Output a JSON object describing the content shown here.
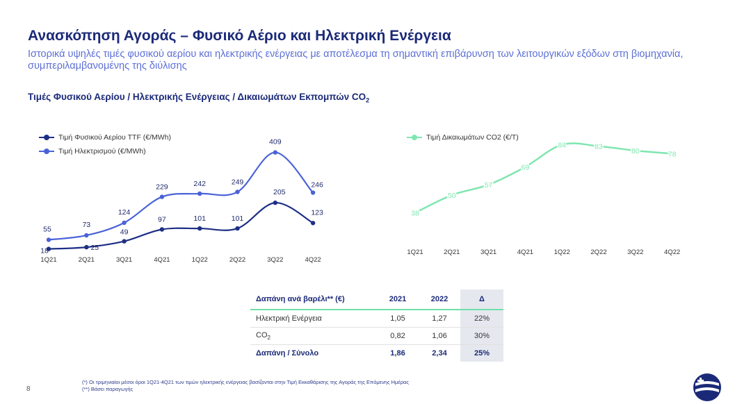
{
  "header": {
    "title": "Ανασκόπηση Αγοράς – Φυσικό Αέριο και Ηλεκτρική Ενέργεια",
    "subtitle": "Ιστορικά υψηλές τιμές φυσικού αερίου και ηλεκτρικής ενέργειας με αποτέλεσμα τη σημαντική επιβάρυνση των λειτουργικών εξόδων στη βιομηχανία, συμπεριλαμβανομένης της διύλισης",
    "chart_heading": "Τιμές Φυσικού Αερίου / Ηλεκτρικής Ενέργειας / Δικαιωμάτων Εκπομπών CO",
    "chart_heading_sub": "2"
  },
  "chart_data": [
    {
      "type": "line",
      "categories": [
        "1Q21",
        "2Q21",
        "3Q21",
        "4Q21",
        "1Q22",
        "2Q22",
        "3Q22",
        "4Q22"
      ],
      "series": [
        {
          "name": "Τιμή Φυσικού Αερίου TTF (€/MWh)",
          "values": [
            18,
            25,
            49,
            97,
            101,
            101,
            205,
            123
          ],
          "color": "#1e2f85"
        },
        {
          "name": "Τιμή Ηλεκτρισμού (€/MWh)",
          "values": [
            55,
            73,
            124,
            229,
            242,
            249,
            409,
            246
          ],
          "color": "#4a62d8"
        }
      ],
      "ylim": [
        0,
        450
      ],
      "legend": "top-left",
      "grid": false
    },
    {
      "type": "line",
      "categories": [
        "1Q21",
        "2Q21",
        "3Q21",
        "4Q21",
        "1Q22",
        "2Q22",
        "3Q22",
        "4Q22"
      ],
      "series": [
        {
          "name": "Τιμή Δικαιωμάτων CO2 (€/T)",
          "values": [
            38,
            50,
            57,
            69,
            84,
            83,
            80,
            78
          ],
          "color": "#7fe6b0"
        }
      ],
      "ylim": [
        20,
        95
      ],
      "legend": "top-left",
      "grid": false
    }
  ],
  "table": {
    "headers": [
      "Δαπάνη ανά βαρέλι** (€)",
      "2021",
      "2022",
      "Δ"
    ],
    "rows": [
      {
        "label": "Ηλεκτρική Ενέργεια",
        "sub": "",
        "v2021": "1,05",
        "v2022": "1,27",
        "delta": "22%"
      },
      {
        "label": "CO",
        "sub": "2",
        "v2021": "0,82",
        "v2022": "1,06",
        "delta": "30%"
      }
    ],
    "total": {
      "label": "Δαπάνη / Σύνολο",
      "v2021": "1,86",
      "v2022": "2,34",
      "delta": "25%"
    }
  },
  "footer": {
    "page_number": "8",
    "note1": "(*) Οι τριμηνιαίοι μέσοι όροι 1Q21-4Q21 των τιμών ηλεκτρικής ενέργειας βασίζονται στην Τιμή Εκκαθάρισης της Αγοράς της Επόμενης Ημέρας",
    "note2": "(**) Βάσει παραγωγής"
  },
  "colors": {
    "gas": "#1e2f85",
    "power": "#4a62d8",
    "co2": "#7fe6b0",
    "brand": "#1b2a78"
  },
  "icons": {
    "logo": "helleniq-logo-icon"
  }
}
